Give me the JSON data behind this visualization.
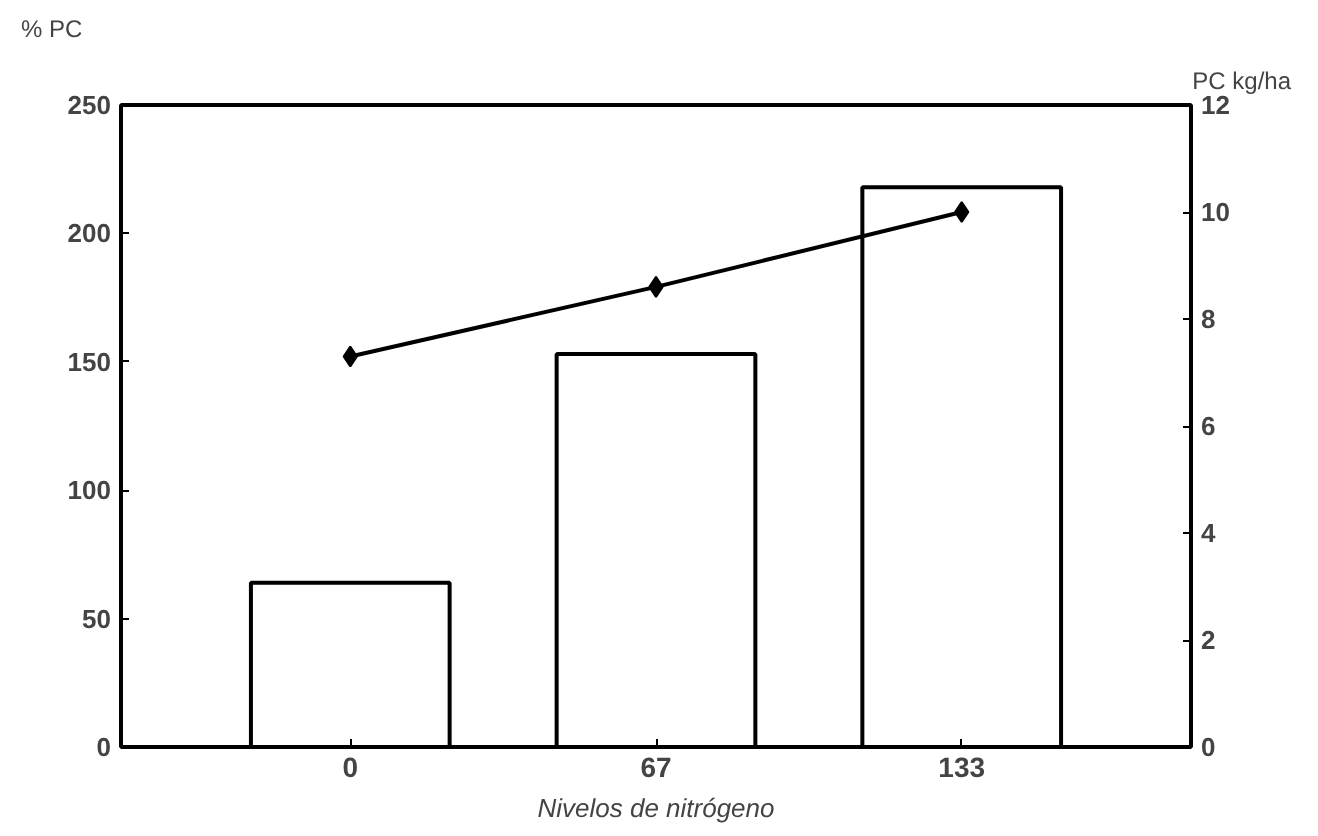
{
  "chart_data": {
    "type": "bar",
    "xlabel": "Nivelos de nitrógeno",
    "ylabel": "% PC",
    "y2label": "PC kg/ha",
    "categories": [
      "0",
      "67",
      "133"
    ],
    "series": [
      {
        "color": "#ffffff",
        "values": [
          64,
          153,
          218
        ]
      },
      {
        "type": "line",
        "axis": "y2",
        "color": "#000000",
        "values": [
          7.3,
          8.6,
          10.0
        ],
        "marker": "diamond"
      }
    ],
    "ylim": [
      0,
      250
    ],
    "yticks": [
      0,
      50,
      100,
      150,
      200,
      250
    ],
    "y2lim": [
      0,
      12
    ],
    "y2ticks": [
      0,
      2,
      4,
      6,
      8,
      10,
      12
    ],
    "grid": false
  }
}
